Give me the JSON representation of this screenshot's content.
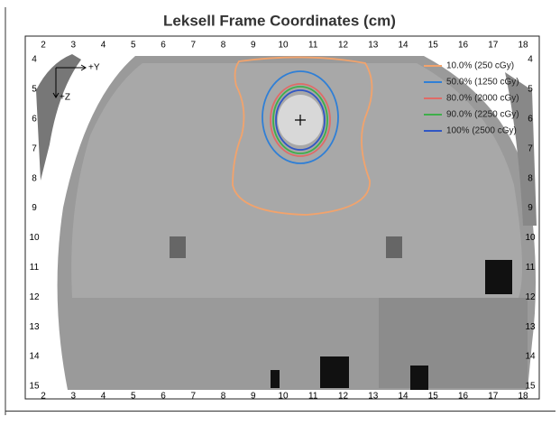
{
  "title": "Leksell Frame Coordinates (cm)",
  "x_axis": {
    "ticks": [
      2,
      3,
      4,
      5,
      6,
      7,
      8,
      9,
      10,
      11,
      12,
      13,
      14,
      15,
      16,
      17,
      18
    ]
  },
  "y_axis": {
    "ticks": [
      4,
      5,
      6,
      7,
      8,
      9,
      10,
      11,
      12,
      13,
      14,
      15
    ]
  },
  "orientation": {
    "y": "+Y",
    "z": "+Z"
  },
  "legend": [
    {
      "label": "10.0% (250 cGy)",
      "color": "#f2a36c"
    },
    {
      "label": "50.0% (1250 cGy)",
      "color": "#2f7fd6"
    },
    {
      "label": "80.0% (2000 cGy)",
      "color": "#e06a66"
    },
    {
      "label": "90.0% (2250 cGy)",
      "color": "#3fae4a"
    },
    {
      "label": "100% (2500 cGy)",
      "color": "#3056c4"
    }
  ]
}
